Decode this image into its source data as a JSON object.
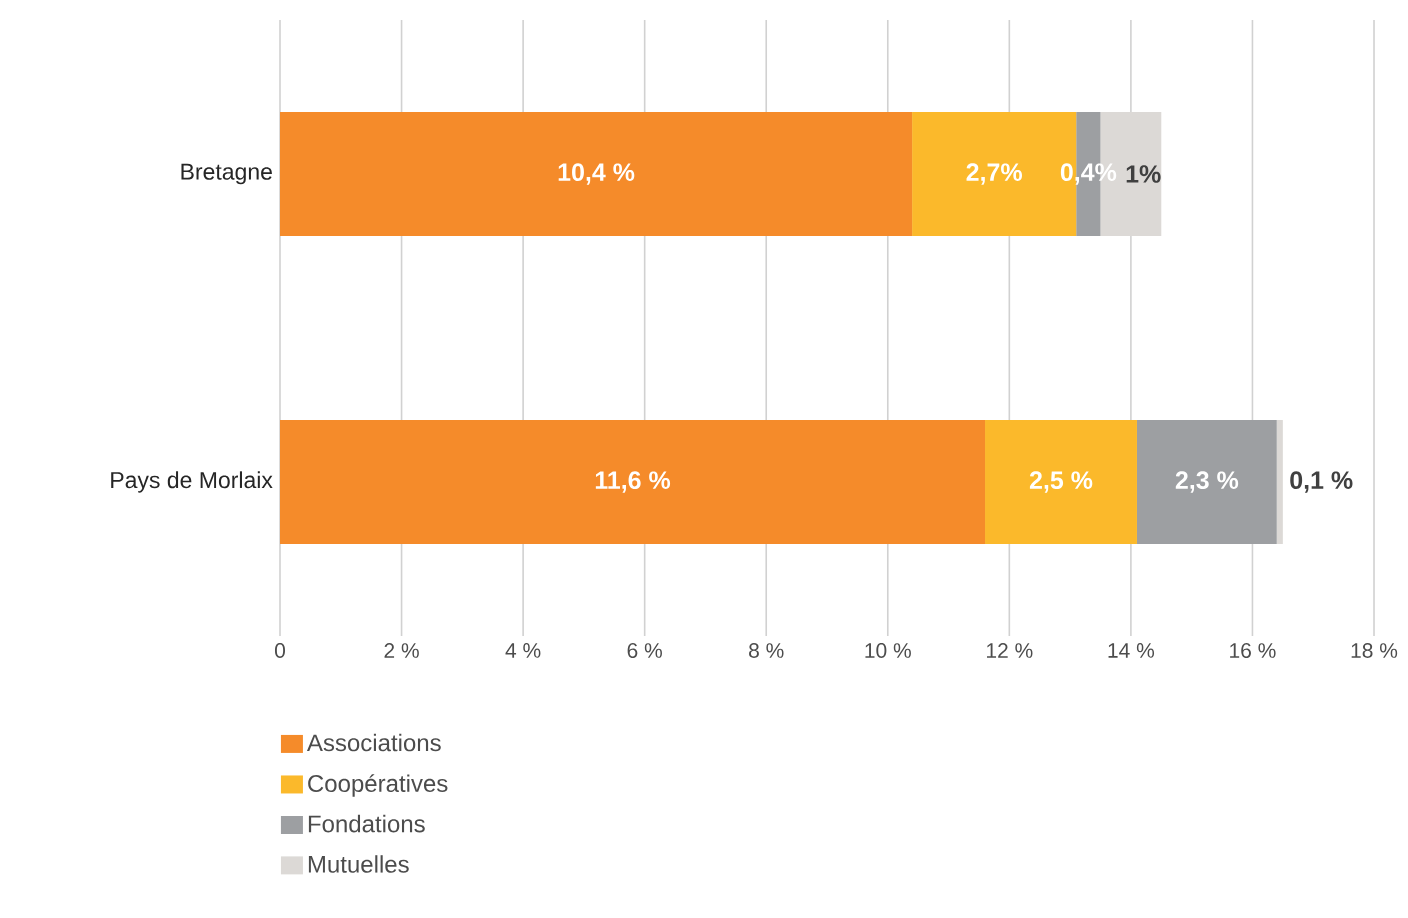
{
  "chart_data": {
    "type": "bar",
    "orientation": "horizontal",
    "stacked": true,
    "categories": [
      "Bretagne",
      "Pays de Morlaix"
    ],
    "series": [
      {
        "name": "Associations",
        "color": "#f58b2a",
        "values": [
          10.4,
          11.6
        ],
        "value_labels": [
          "10,4 %",
          "11,6 %"
        ]
      },
      {
        "name": "Coopératives",
        "color": "#fbb92b",
        "values": [
          2.7,
          2.5
        ],
        "value_labels": [
          "2,7%",
          "2,5 %"
        ]
      },
      {
        "name": "Fondations",
        "color": "#9d9fa2",
        "values": [
          0.4,
          2.3
        ],
        "value_labels": [
          "0,4%",
          "2,3 %"
        ]
      },
      {
        "name": "Mutuelles",
        "color": "#dcd9d6",
        "values": [
          1,
          0.1
        ],
        "value_labels": [
          "1%",
          "0,1 %"
        ]
      }
    ],
    "xlim": [
      0,
      18
    ],
    "xticks": [
      0,
      {
        "value": 2,
        "label": "2 %"
      },
      {
        "value": 4,
        "label": "4 %"
      },
      {
        "value": 6,
        "label": "6 %"
      },
      {
        "value": 8,
        "label": "8 %"
      },
      {
        "value": 10,
        "label": "10 %"
      },
      {
        "value": 12,
        "label": "12 %"
      },
      {
        "value": 14,
        "label": "14 %"
      },
      {
        "value": 16,
        "label": "16 %"
      },
      {
        "value": 18,
        "label": "18 %"
      }
    ],
    "grid": "x",
    "legend": "bottom left"
  }
}
